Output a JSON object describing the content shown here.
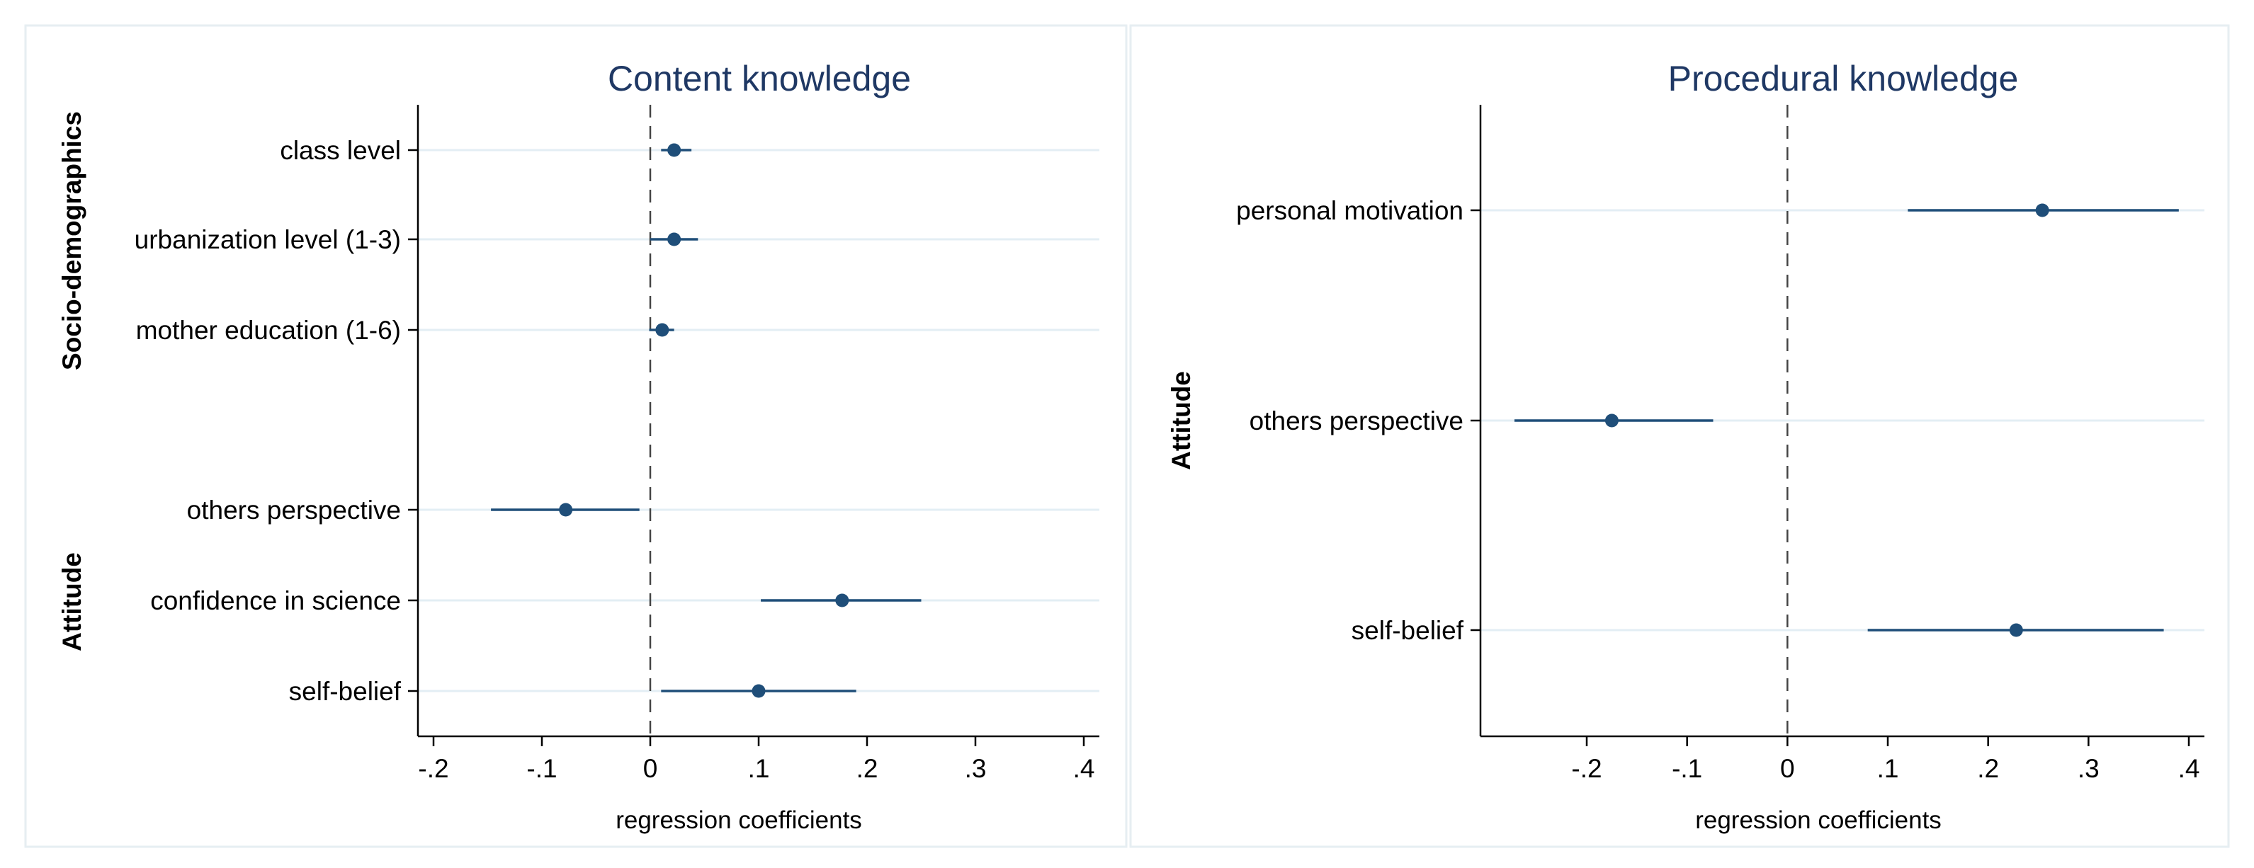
{
  "chart_data": [
    {
      "type": "scatter",
      "title": "Content knowledge",
      "xlabel": "regression coefficients",
      "xlim": [
        -0.22,
        0.42
      ],
      "xticks": [
        -0.2,
        -0.1,
        0,
        0.1,
        0.2,
        0.3,
        0.4
      ],
      "xtick_labels": [
        "-.2",
        "-.1",
        "0",
        ".1",
        ".2",
        ".3",
        ".4"
      ],
      "reference_line": 0,
      "groups": [
        {
          "label": "Socio-demographics",
          "items": [
            {
              "label": "class level",
              "estimate": 0.022,
              "ci": [
                0.01,
                0.038
              ]
            },
            {
              "label": "urbanization level (1-3)",
              "estimate": 0.022,
              "ci": [
                0.0,
                0.044
              ]
            },
            {
              "label": "mother education (1-6)",
              "estimate": 0.011,
              "ci": [
                -0.001,
                0.022
              ]
            }
          ]
        },
        {
          "label": "Attitude",
          "items": [
            {
              "label": "others perspective",
              "estimate": -0.078,
              "ci": [
                -0.147,
                -0.01
              ]
            },
            {
              "label": "confidence in science",
              "estimate": 0.177,
              "ci": [
                0.102,
                0.25
              ]
            },
            {
              "label": "self-belief",
              "estimate": 0.1,
              "ci": [
                0.01,
                0.19
              ]
            }
          ]
        }
      ],
      "colors": {
        "point": "#1f4e79",
        "title": "#1f3864",
        "grid": "#e3eef4"
      }
    },
    {
      "type": "scatter",
      "title": "Procedural knowledge",
      "xlabel": "regression coefficients",
      "xlim": [
        -0.29,
        0.42
      ],
      "xticks": [
        -0.2,
        -0.1,
        0,
        0.1,
        0.2,
        0.3,
        0.4
      ],
      "xtick_labels": [
        "-.2",
        "-.1",
        "0",
        ".1",
        ".2",
        ".3",
        ".4"
      ],
      "reference_line": 0,
      "groups": [
        {
          "label": "Attitude",
          "items": [
            {
              "label": "personal motivation",
              "estimate": 0.254,
              "ci": [
                0.12,
                0.39
              ]
            },
            {
              "label": "others perspective",
              "estimate": -0.175,
              "ci": [
                -0.272,
                -0.074
              ]
            },
            {
              "label": "self-belief",
              "estimate": 0.228,
              "ci": [
                0.08,
                0.375
              ]
            }
          ]
        }
      ],
      "colors": {
        "point": "#1f4e79",
        "title": "#1f3864",
        "grid": "#e3eef4"
      }
    }
  ]
}
